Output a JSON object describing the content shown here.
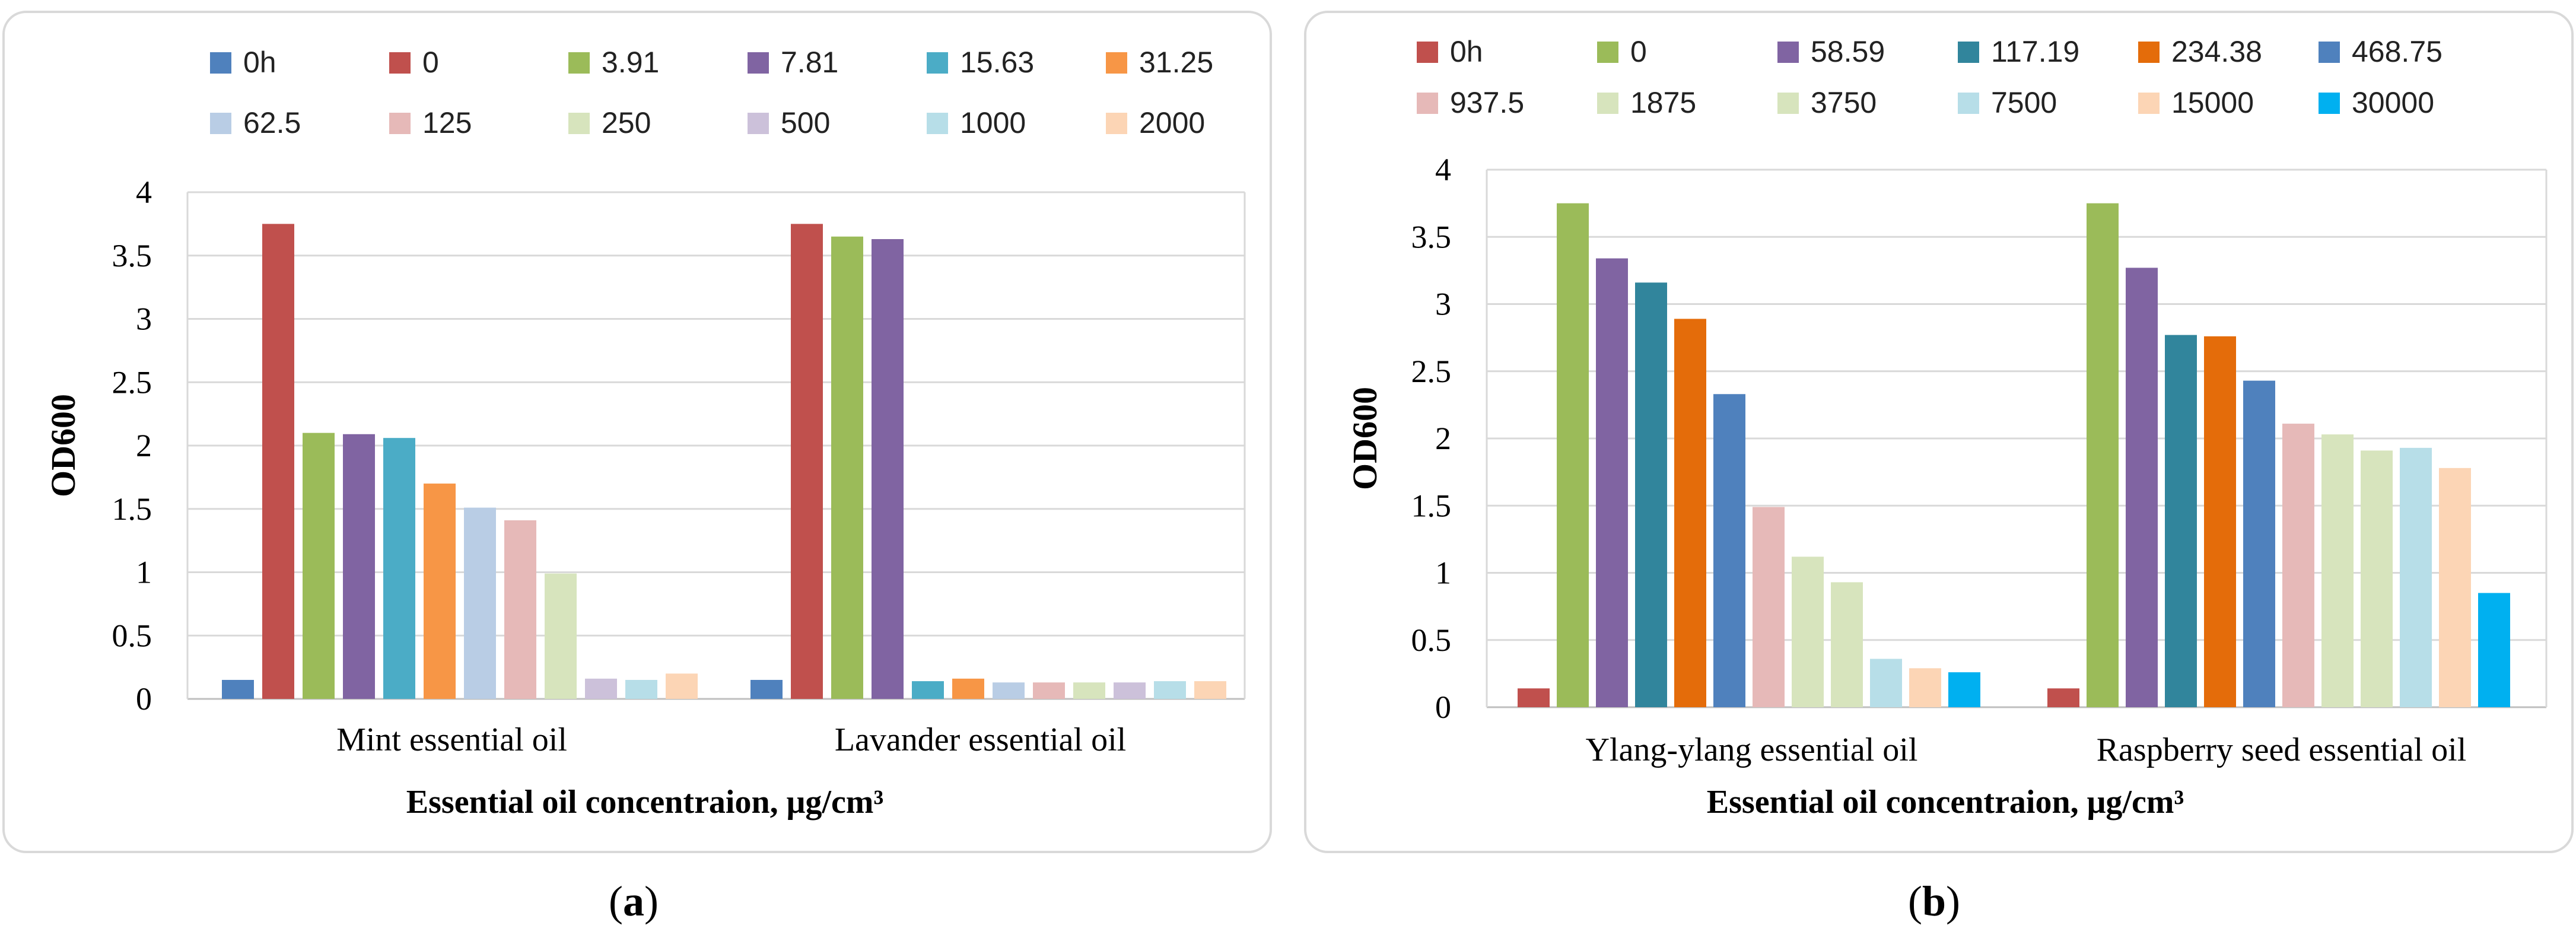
{
  "colors": {
    "0h": "#4f81bd",
    "0": "#c0504d",
    "3.91": "#9bbb59",
    "7.81": "#8064a2",
    "15.63": "#4bacc6",
    "31.25": "#f79646",
    "62.5": "#b9cde5",
    "125": "#e6b9b8",
    "250": "#d7e4bd",
    "500": "#ccc1da",
    "1000": "#b7dee8",
    "2000": "#fcd5b5",
    "b_0h": "#c0504d",
    "b_0": "#9bbb59",
    "58.59": "#8064a2",
    "117.19": "#31859c",
    "234.38": "#e46c0a",
    "468.75": "#4f81bd",
    "937.5": "#e6b9b8",
    "1875": "#d7e4bd",
    "3750": "#d7e4bd",
    "7500": "#b7dee8",
    "15000": "#fcd5b5",
    "30000": "#00b0f0",
    "grid": "#d9d9d9",
    "axis": "#bfbfbf"
  },
  "chart_data": [
    {
      "type": "bar",
      "panel_label": "a",
      "ylabel": "OD600",
      "xlabel": "Essential oil concentraion, μg/cm³",
      "ylim": [
        0,
        4
      ],
      "yticks": [
        "0",
        "0.5",
        "1",
        "1.5",
        "2",
        "2.5",
        "3",
        "3.5",
        "4"
      ],
      "legend_position": "top",
      "categories": [
        "Mint essential oil",
        "Lavander essential oil"
      ],
      "series": [
        {
          "name": "0h",
          "values": [
            0.15,
            0.15
          ]
        },
        {
          "name": "0",
          "values": [
            3.75,
            3.75
          ]
        },
        {
          "name": "3.91",
          "values": [
            2.1,
            3.65
          ]
        },
        {
          "name": "7.81",
          "values": [
            2.09,
            3.63
          ]
        },
        {
          "name": "15.63",
          "values": [
            2.06,
            0.14
          ]
        },
        {
          "name": "31.25",
          "values": [
            1.7,
            0.16
          ]
        },
        {
          "name": "62.5",
          "values": [
            1.51,
            0.13
          ]
        },
        {
          "name": "125",
          "values": [
            1.41,
            0.13
          ]
        },
        {
          "name": "250",
          "values": [
            0.99,
            0.13
          ]
        },
        {
          "name": "500",
          "values": [
            0.16,
            0.13
          ]
        },
        {
          "name": "1000",
          "values": [
            0.15,
            0.14
          ]
        },
        {
          "name": "2000",
          "values": [
            0.2,
            0.14
          ]
        }
      ]
    },
    {
      "type": "bar",
      "panel_label": "b",
      "ylabel": "OD600",
      "xlabel": "Essential oil concentraion, μg/cm³",
      "ylim": [
        0,
        4
      ],
      "yticks": [
        "0",
        "0.5",
        "1",
        "1.5",
        "2",
        "2.5",
        "3",
        "3.5",
        "4"
      ],
      "legend_position": "top",
      "categories": [
        "Ylang-ylang essential oil",
        "Raspberry seed essential oil"
      ],
      "series": [
        {
          "name": "0h",
          "values": [
            0.14,
            0.14
          ]
        },
        {
          "name": "0",
          "values": [
            3.75,
            3.75
          ]
        },
        {
          "name": "58.59",
          "values": [
            3.34,
            3.27
          ]
        },
        {
          "name": "117.19",
          "values": [
            3.16,
            2.77
          ]
        },
        {
          "name": "234.38",
          "values": [
            2.89,
            2.76
          ]
        },
        {
          "name": "468.75",
          "values": [
            2.33,
            2.43
          ]
        },
        {
          "name": "937.5",
          "values": [
            1.49,
            2.11
          ]
        },
        {
          "name": "1875",
          "values": [
            1.12,
            2.03
          ]
        },
        {
          "name": "3750",
          "values": [
            0.93,
            1.91
          ]
        },
        {
          "name": "7500",
          "values": [
            0.36,
            1.93
          ]
        },
        {
          "name": "15000",
          "values": [
            0.29,
            1.78
          ]
        },
        {
          "name": "30000",
          "values": [
            0.26,
            0.85
          ]
        }
      ]
    }
  ]
}
